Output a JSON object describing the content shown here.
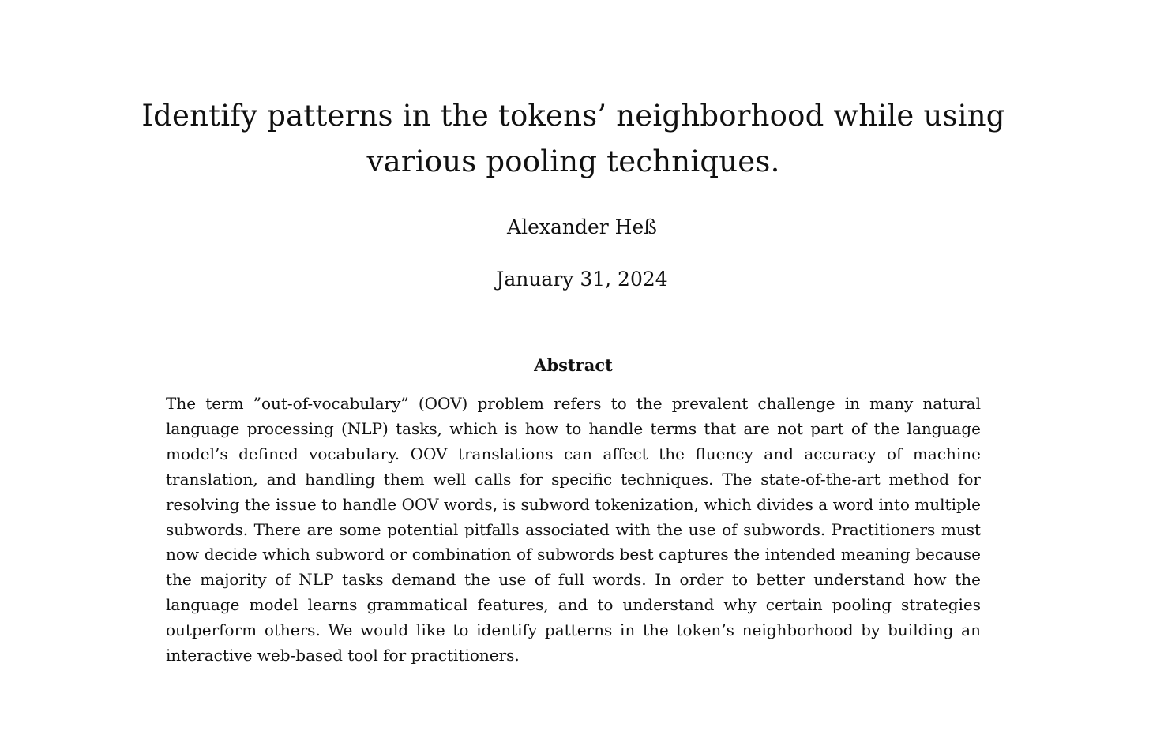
{
  "paper": {
    "title": "Identify patterns in the tokens’ neighborhood while using various pooling techniques.",
    "author": "Alexander Heß",
    "date": "January 31, 2024",
    "abstract_heading": "Abstract",
    "abstract_text": "The term ”out-of-vocabulary” (OOV) problem refers to the prevalent challenge in many natural language processing (NLP) tasks, which is how to handle terms that are not part of the language model’s defined vocabulary. OOV translations can affect the fluency and accuracy of machine translation, and handling them well calls for specific techniques. The state-of-the-art method for resolving the issue to handle OOV words, is subword tokenization, which divides a word into multiple subwords. There are some potential pitfalls associated with the use of subwords. Practitioners must now decide which subword or combination of subwords best captures the intended meaning because the majority of NLP tasks demand the use of full words. In order to better understand how the language model learns grammatical features, and to understand why certain pooling strategies outperform others. We would like to identify patterns in the token’s neighborhood by building an interactive web-based tool for practitioners."
  }
}
